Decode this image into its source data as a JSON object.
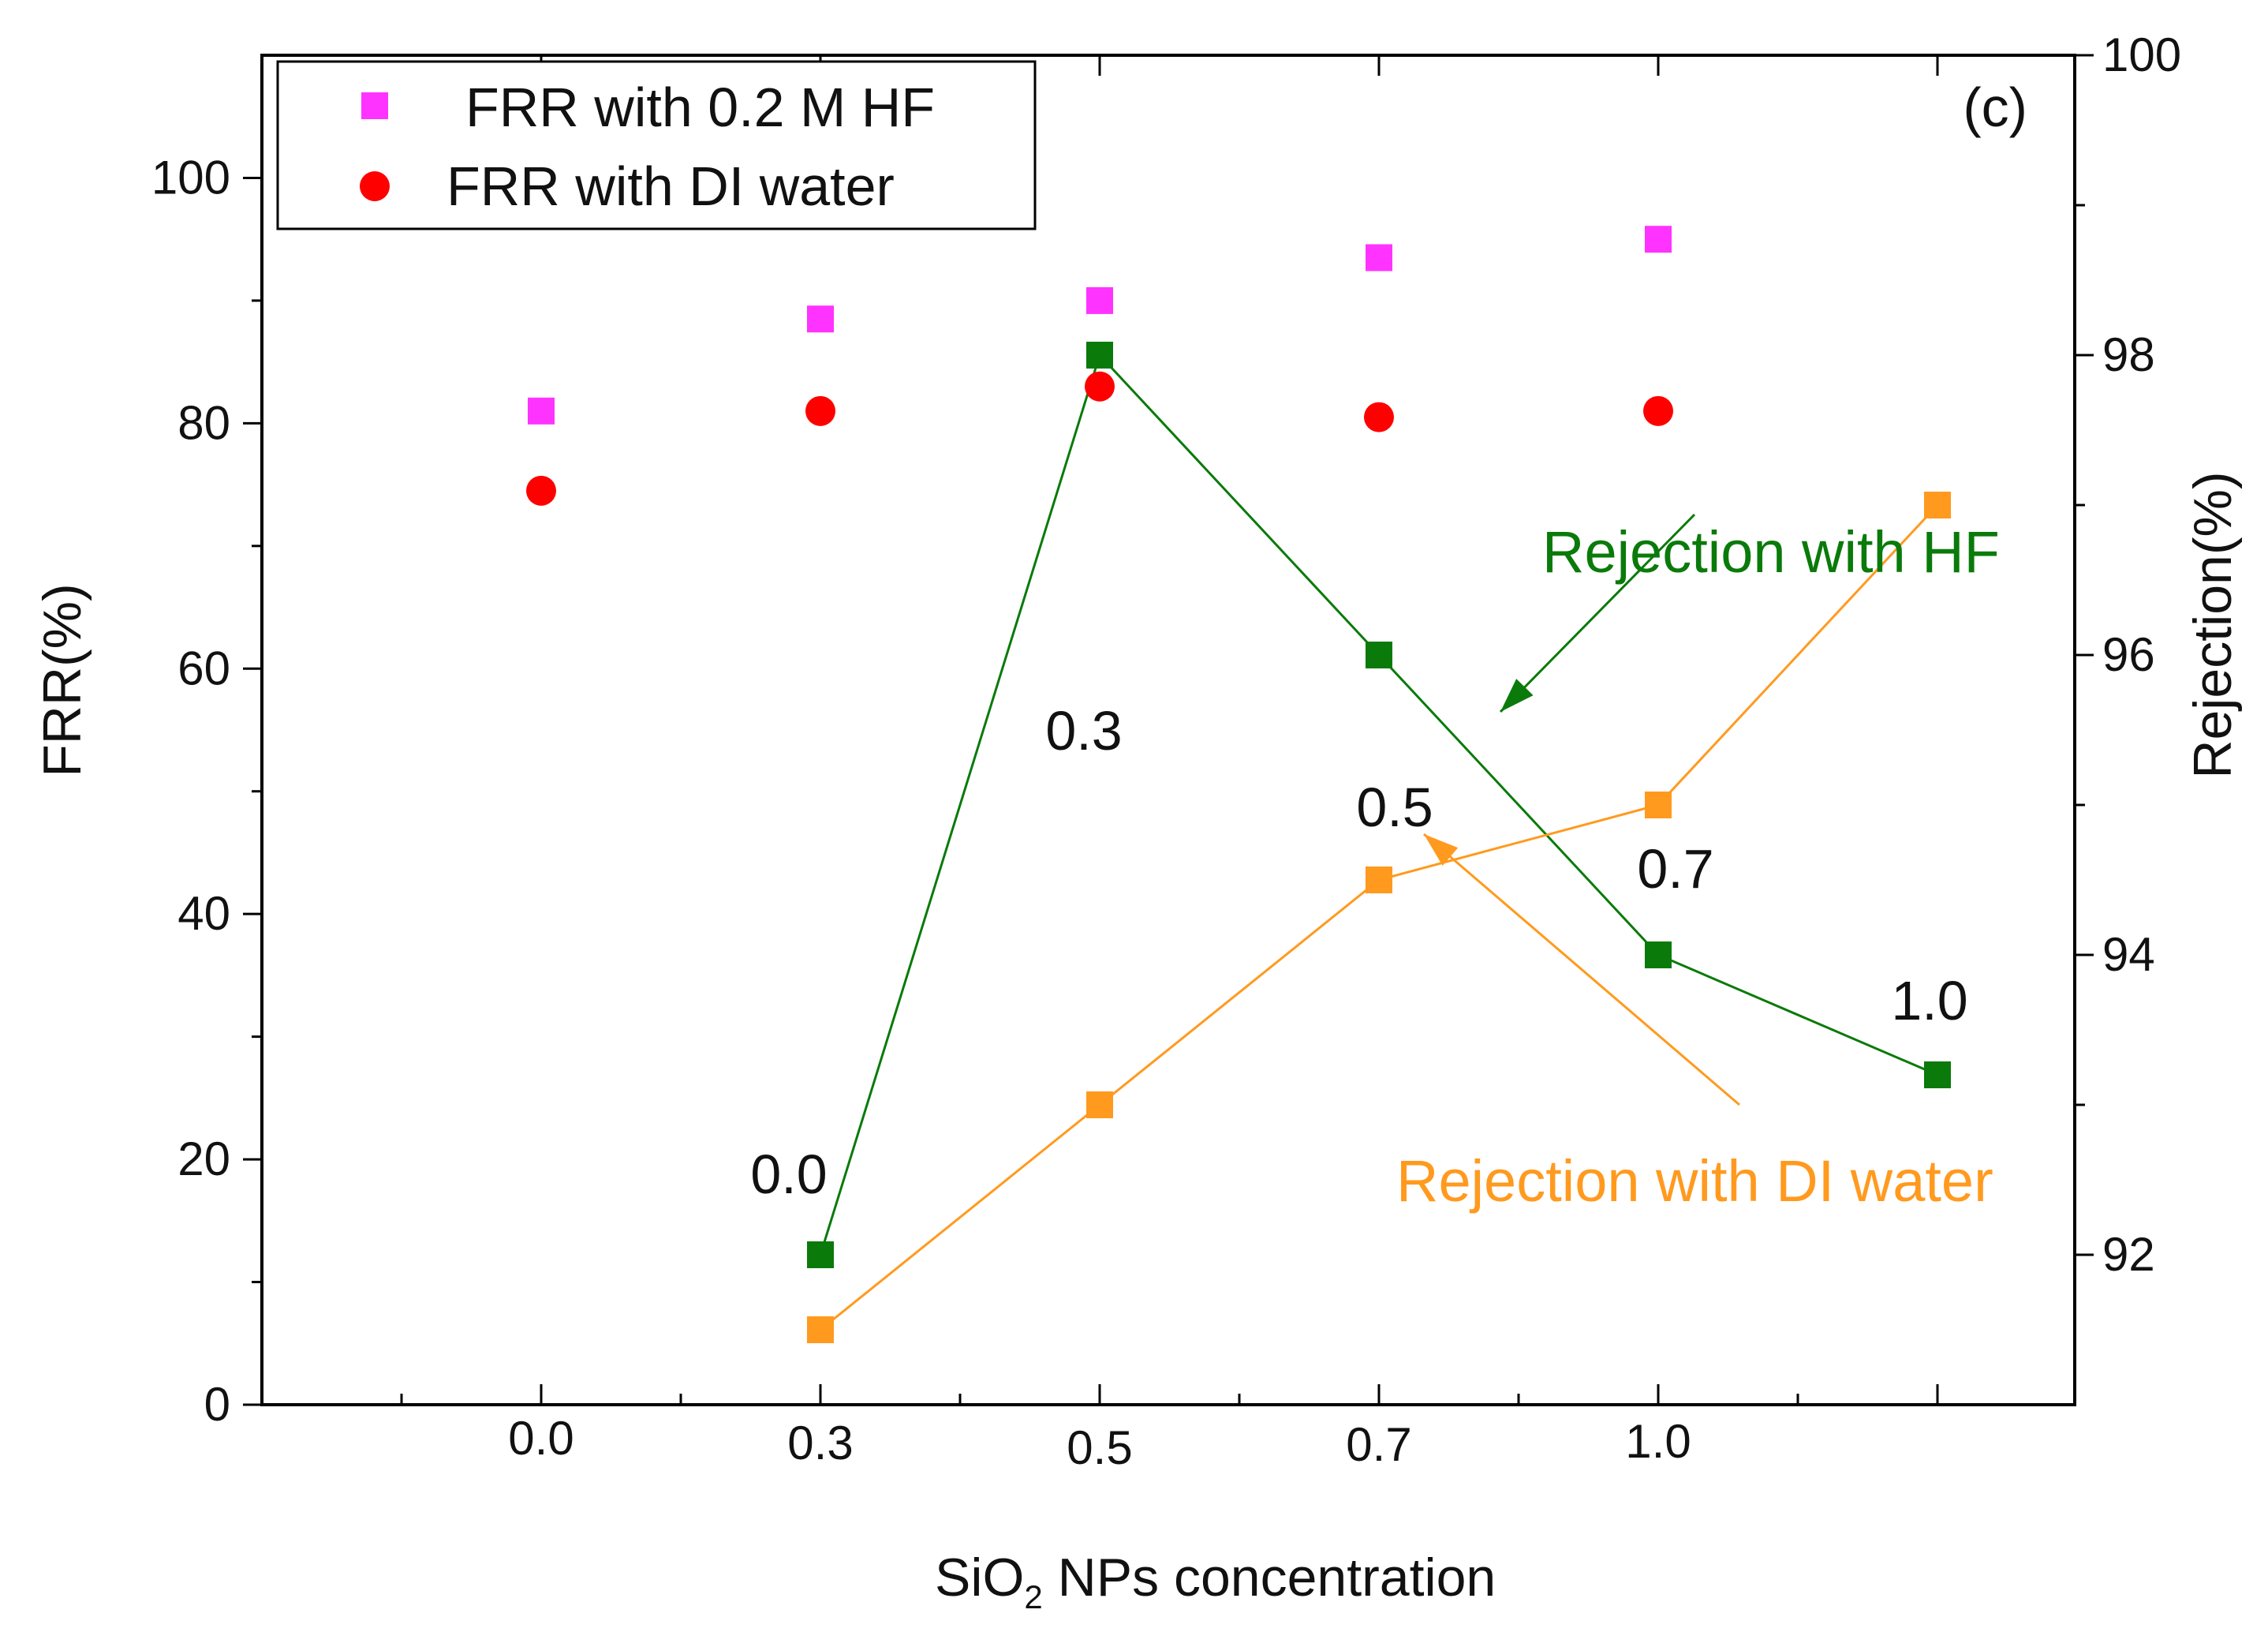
{
  "chart_data": {
    "type": "scatter",
    "panel_label": "(c)",
    "xlabel_main": "SiO",
    "xlabel_sub": "2",
    "xlabel_rest": " NPs concentration",
    "ylabel_left": "FRR(%)",
    "ylabel_right": "Rejection(%)",
    "x_tick_labels": [
      "0.0",
      "0.3",
      "0.5",
      "0.7",
      "1.0"
    ],
    "ylim_left": [
      0,
      110
    ],
    "yticks_left": [
      0,
      20,
      40,
      60,
      80,
      100
    ],
    "ylim_right": [
      91,
      100
    ],
    "yticks_right": [
      92,
      94,
      96,
      98,
      100
    ],
    "colors": {
      "magenta": "#ff33ff",
      "red": "#ff0000",
      "green": "#0a7a0a",
      "orange": "#ff9a1f"
    },
    "legend": {
      "position": "top-left",
      "entries": [
        {
          "label": "FRR with 0.2 M HF",
          "marker": "square",
          "color": "#ff33ff"
        },
        {
          "label": "FRR with DI water",
          "marker": "circle",
          "color": "#ff0000"
        }
      ]
    },
    "series": [
      {
        "name": "FRR with 0.2 M HF",
        "axis": "left",
        "marker": "square",
        "color": "#ff33ff",
        "x": [
          0,
          1,
          2,
          3,
          4
        ],
        "values": [
          81,
          88.5,
          90,
          93.5,
          95
        ]
      },
      {
        "name": "FRR with DI water",
        "axis": "left",
        "marker": "circle",
        "color": "#ff0000",
        "x": [
          0,
          1,
          2,
          3,
          4
        ],
        "values": [
          74.5,
          81,
          83,
          80.5,
          81
        ]
      },
      {
        "name": "Rejection with HF",
        "axis": "right",
        "marker": "square",
        "line": true,
        "color": "#0a7a0a",
        "x": [
          1,
          2,
          3,
          4,
          5
        ],
        "values": [
          92,
          98,
          96,
          94,
          93.2
        ],
        "point_labels": [
          "0.0",
          "0.3",
          "",
          "0.7",
          "1.0"
        ]
      },
      {
        "name": "Rejection with DI water",
        "axis": "right",
        "marker": "square",
        "line": true,
        "color": "#ff9a1f",
        "x": [
          1,
          2,
          3,
          4,
          5
        ],
        "values": [
          91.5,
          93,
          94.5,
          95,
          97
        ],
        "point_labels": [
          "",
          "",
          "0.5",
          "",
          ""
        ]
      }
    ],
    "annotations": [
      {
        "text": "Rejection with HF",
        "color": "#0a7a0a"
      },
      {
        "text": "Rejection with DI water",
        "color": "#ff9a1f"
      }
    ]
  }
}
